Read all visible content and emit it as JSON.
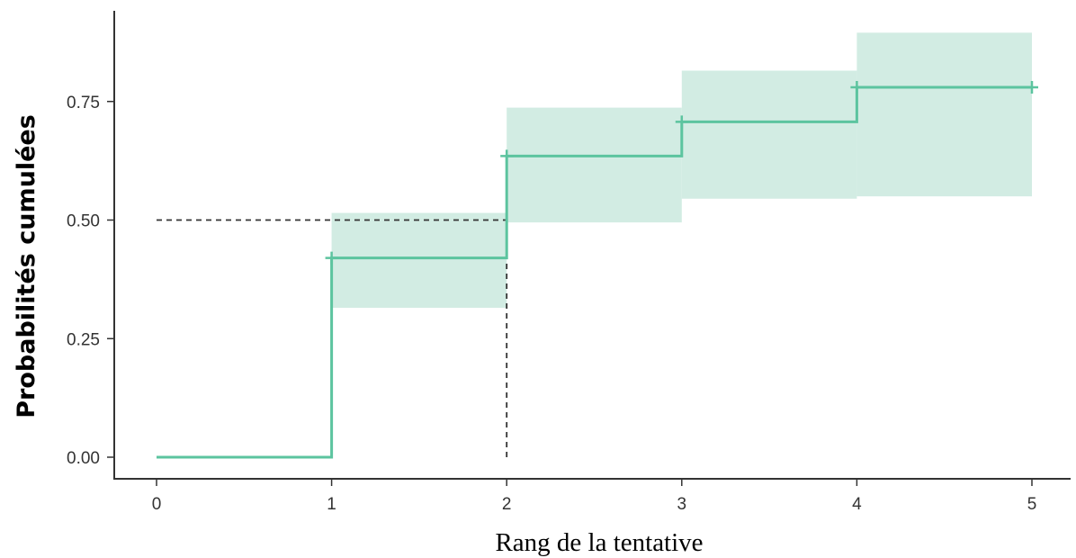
{
  "chart_data": {
    "type": "line",
    "subtype": "step",
    "title": "",
    "xlabel": "Rang de la tentative",
    "ylabel": "Probabilités cumulées",
    "xlim": [
      0,
      5
    ],
    "ylim": [
      0,
      0.9
    ],
    "x_ticks": [
      0,
      1,
      2,
      3,
      4,
      5
    ],
    "x_tick_labels": [
      "0",
      "1",
      "2",
      "3",
      "4",
      "5"
    ],
    "y_ticks": [
      0,
      0.25,
      0.5,
      0.75
    ],
    "y_tick_labels": [
      "0.00",
      "0.25",
      "0.50",
      "0.75"
    ],
    "grid": false,
    "colors": {
      "line": "#5cc49f",
      "band": "#d2ece3",
      "reference": "#333333",
      "axis": "#333333"
    },
    "series": [
      {
        "x": [
          0,
          1,
          2,
          3,
          4,
          5
        ],
        "y": [
          0.0,
          0.42,
          0.635,
          0.707,
          0.78,
          0.78
        ],
        "lower": [
          0.0,
          0.315,
          0.495,
          0.545,
          0.55,
          0.55
        ],
        "upper": [
          0.0,
          0.515,
          0.737,
          0.815,
          0.895,
          0.895
        ]
      }
    ],
    "censor_marks": [
      {
        "x": 1,
        "y": 0.42
      },
      {
        "x": 2,
        "y": 0.635
      },
      {
        "x": 3,
        "y": 0.707
      },
      {
        "x": 4,
        "y": 0.78
      },
      {
        "x": 5,
        "y": 0.78
      }
    ],
    "reference_lines": [
      {
        "orientation": "horizontal",
        "y": 0.5,
        "x_from": 0,
        "x_to": 2,
        "style": "dashed"
      },
      {
        "orientation": "vertical",
        "x": 2,
        "y_from": 0,
        "y_to": 0.5,
        "style": "dashed"
      }
    ]
  }
}
